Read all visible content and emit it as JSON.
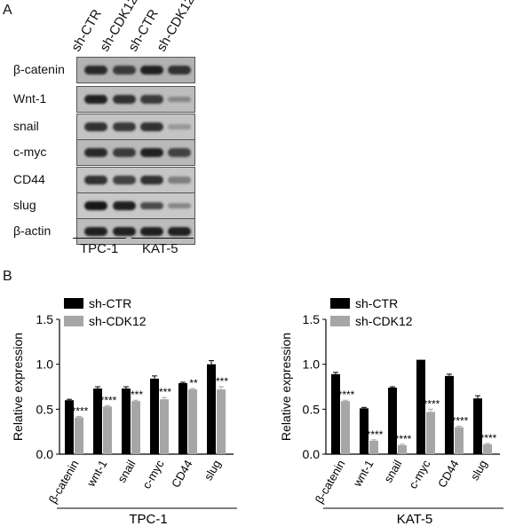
{
  "panel_a": {
    "letter": "A",
    "lanes": [
      "sh-CTR",
      "sh-CDK12",
      "sh-CTR",
      "sh-CDK12"
    ],
    "proteins": [
      {
        "label": "β-catenin",
        "intensity": [
          0.85,
          0.75,
          0.9,
          0.8
        ],
        "bg": "#b2b2b2"
      },
      {
        "label": "Wnt-1",
        "intensity": [
          0.9,
          0.8,
          0.75,
          0.3
        ],
        "bg": "#bdbdbd"
      },
      {
        "label": "snail",
        "intensity": [
          0.8,
          0.75,
          0.8,
          0.2
        ],
        "bg": "#c4c4c4"
      },
      {
        "label": "c-myc",
        "intensity": [
          0.85,
          0.75,
          0.9,
          0.7
        ],
        "bg": "#b9b9b9"
      },
      {
        "label": "CD44",
        "intensity": [
          0.8,
          0.7,
          0.8,
          0.35
        ],
        "bg": "#c6c6c6"
      },
      {
        "label": "slug",
        "intensity": [
          0.95,
          0.9,
          0.65,
          0.3
        ],
        "bg": "#c8c8c8"
      },
      {
        "label": "β-actin",
        "intensity": [
          0.9,
          0.9,
          0.9,
          0.9
        ],
        "bg": "#bcbcbc"
      }
    ],
    "groups": [
      "TPC-1",
      "KAT-5"
    ]
  },
  "panel_b": {
    "letter": "B"
  },
  "chart_data": [
    {
      "type": "bar",
      "title": "TPC-1",
      "ylabel": "Relative expression",
      "ylim": [
        0,
        1.5
      ],
      "yticks": [
        "0.0",
        "0.5",
        "1.0",
        "1.5"
      ],
      "categories": [
        "β-catenin",
        "wnt-1",
        "snail",
        "c-myc",
        "CD44",
        "slug"
      ],
      "series": [
        {
          "name": "sh-CTR",
          "color": "#000000",
          "values": [
            0.6,
            0.73,
            0.73,
            0.84,
            0.79,
            1.0
          ],
          "errors": [
            0.01,
            0.02,
            0.02,
            0.03,
            0.01,
            0.04
          ]
        },
        {
          "name": "sh-CDK12",
          "color": "#a6a6a6",
          "values": [
            0.41,
            0.53,
            0.59,
            0.61,
            0.72,
            0.72
          ],
          "errors": [
            0.01,
            0.01,
            0.01,
            0.02,
            0.01,
            0.03
          ]
        }
      ],
      "significance": [
        "****",
        "****",
        "***",
        "***",
        "**",
        "***"
      ],
      "legend_position": "top-left"
    },
    {
      "type": "bar",
      "title": "KAT-5",
      "ylabel": "Relative expression",
      "ylim": [
        0,
        1.5
      ],
      "yticks": [
        "0.0",
        "0.5",
        "1.0",
        "1.5"
      ],
      "categories": [
        "β-catenin",
        "wnt-1",
        "snail",
        "c-myc",
        "CD44",
        "slug"
      ],
      "series": [
        {
          "name": "sh-CTR",
          "color": "#000000",
          "values": [
            0.89,
            0.51,
            0.74,
            1.05,
            0.87,
            0.62
          ],
          "errors": [
            0.02,
            0.01,
            0.01,
            0.0,
            0.02,
            0.03
          ]
        },
        {
          "name": "sh-CDK12",
          "color": "#a6a6a6",
          "values": [
            0.59,
            0.15,
            0.1,
            0.47,
            0.3,
            0.11
          ],
          "errors": [
            0.01,
            0.01,
            0.01,
            0.03,
            0.01,
            0.01
          ]
        }
      ],
      "significance": [
        "****",
        "****",
        "****",
        "****",
        "****",
        "****"
      ],
      "legend_position": "top-left"
    }
  ]
}
